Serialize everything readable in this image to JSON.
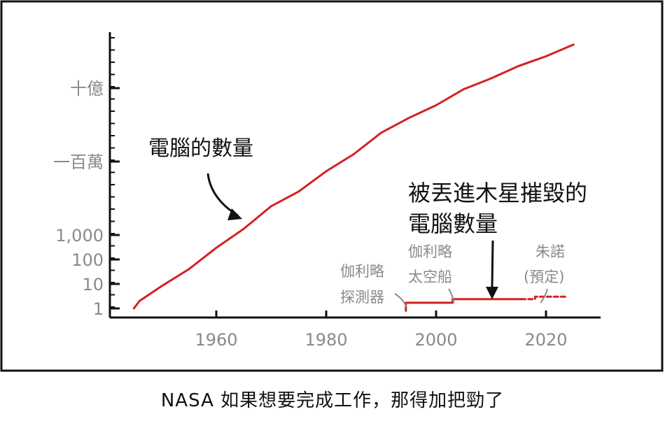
{
  "chart_data": {
    "type": "line",
    "y_scale": "log",
    "x_ticks": [
      1960,
      1980,
      2000,
      2020
    ],
    "y_ticks": [
      {
        "value": 1,
        "label": "1"
      },
      {
        "value": 10,
        "label": "10"
      },
      {
        "value": 100,
        "label": "100"
      },
      {
        "value": 1000,
        "label": "1,000"
      },
      {
        "value": 1000000,
        "label": "一百萬"
      },
      {
        "value": 1000000000,
        "label": "十億"
      }
    ],
    "series": [
      {
        "name": "電腦的數量",
        "color": "#d62020",
        "style": "solid",
        "points": [
          [
            1945,
            1
          ],
          [
            1946,
            2
          ],
          [
            1950,
            8
          ],
          [
            1955,
            40
          ],
          [
            1960,
            300
          ],
          [
            1965,
            1800
          ],
          [
            1970,
            15000
          ],
          [
            1975,
            60000
          ],
          [
            1980,
            400000
          ],
          [
            1985,
            2000000
          ],
          [
            1990,
            15000000
          ],
          [
            1995,
            60000000
          ],
          [
            2000,
            200000000
          ],
          [
            2005,
            900000000
          ],
          [
            2010,
            2500000000
          ],
          [
            2015,
            8000000000
          ],
          [
            2020,
            20000000000
          ],
          [
            2025,
            60000000000
          ]
        ]
      },
      {
        "name": "被丟進木星摧毀的電腦數量",
        "color": "#d62020",
        "style": "solid",
        "points": [
          [
            1994.5,
            0.8
          ],
          [
            1994.5,
            1.7
          ],
          [
            2003,
            1.7
          ],
          [
            2003,
            2.4
          ],
          [
            2015.5,
            2.4
          ]
        ]
      },
      {
        "name": "朱諾(預定)",
        "color": "#d62020",
        "style": "dashed",
        "points": [
          [
            2015.5,
            2.4
          ],
          [
            2018,
            2.4
          ],
          [
            2018,
            3.0
          ],
          [
            2023.5,
            3.0
          ]
        ]
      }
    ],
    "annotations": {
      "computers_label": "電腦的數量",
      "destroyed_label_line1": "被丟進木星摧毀的",
      "destroyed_label_line2": "電腦數量",
      "galileo_probe_line1": "伽利略",
      "galileo_probe_line2": "探測器",
      "galileo_craft_line1": "伽利略",
      "galileo_craft_line2": "太空船",
      "juno_line1": "朱諾",
      "juno_line2": "(預定)"
    }
  },
  "caption": "NASA 如果想要完成工作，那得加把勁了"
}
